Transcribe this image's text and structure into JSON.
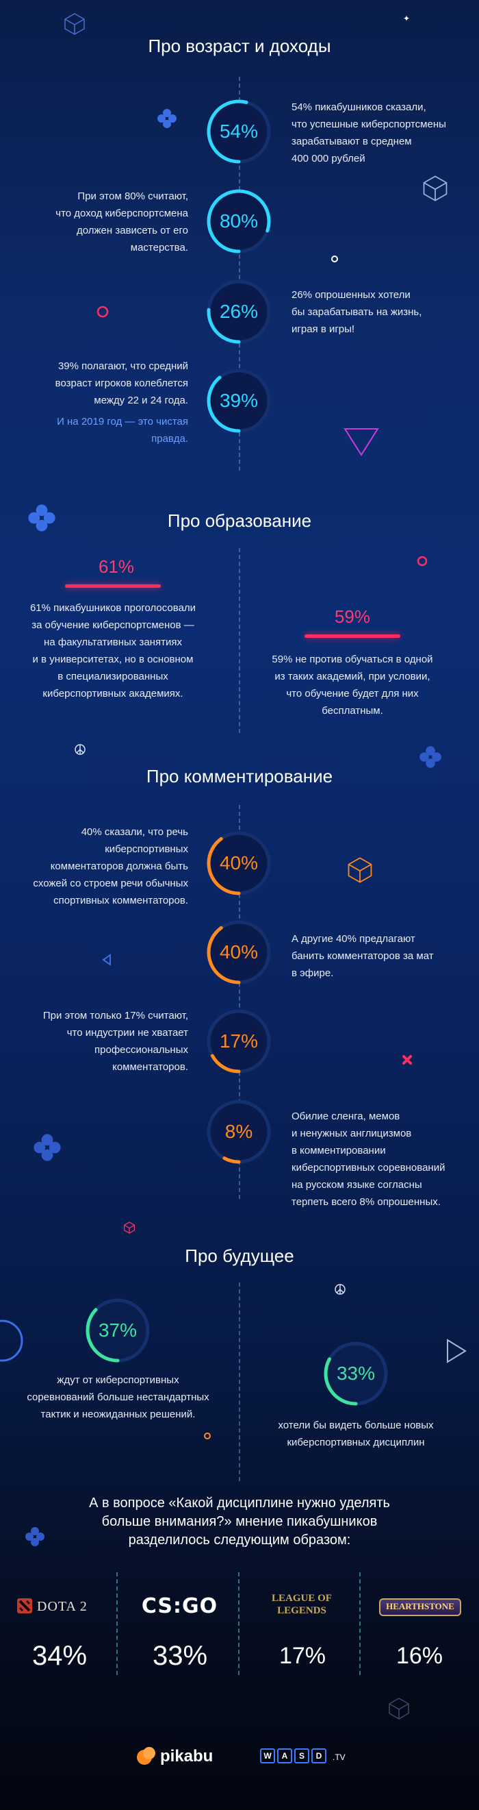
{
  "sections": {
    "age": {
      "title": "Про возраст и доходы",
      "items": [
        {
          "value": "54%",
          "text_lines": [
            "54% пикабушников сказали,",
            "что успешные киберспортсмены",
            "зарабатывают в среднем",
            "400 000 рублей"
          ]
        },
        {
          "value": "80%",
          "text_lines": [
            "При этом 80% считают,",
            "что доход киберспортсмена",
            "должен зависеть от его",
            "мастерства."
          ]
        },
        {
          "value": "26%",
          "text_lines": [
            "26% опрошенных хотели",
            "бы зарабатывать на жизнь,",
            "играя в игры!"
          ]
        },
        {
          "value": "39%",
          "text_lines": [
            "39% полагают, что средний",
            "возраст игроков колеблется",
            "между 22 и 24 года."
          ],
          "accent_lines": [
            "И на 2019 год — это чистая",
            "правда."
          ]
        }
      ]
    },
    "education": {
      "title": "Про образование",
      "items": [
        {
          "value": "61%",
          "fraction": 0.61,
          "text_lines": [
            "61% пикабушников проголосовали",
            "за обучение киберспортсменов —",
            "на факультативных занятиях",
            "и в университетах, но в основном",
            "в специализированных",
            "киберспортивных академиях."
          ]
        },
        {
          "value": "59%",
          "fraction": 0.59,
          "text_lines": [
            "59% не против обучаться в одной",
            "из таких академий, при условии,",
            "что обучение будет для них",
            "бесплатным."
          ]
        }
      ]
    },
    "commenting": {
      "title": "Про комментирование",
      "items": [
        {
          "value": "40%",
          "text_lines": [
            "40% сказали, что речь",
            "киберспортивных",
            "комментаторов должна быть",
            "схожей со строем речи обычных",
            "спортивных комментаторов."
          ]
        },
        {
          "value": "40%",
          "text_lines": [
            "А другие 40% предлагают",
            "банить комментаторов за мат",
            "в эфире."
          ]
        },
        {
          "value": "17%",
          "text_lines": [
            "При этом только 17% считают,",
            "что индустрии не хватает",
            "профессиональных",
            "комментаторов."
          ]
        },
        {
          "value": "8%",
          "text_lines": [
            "Обилие сленга, мемов",
            "и ненужных англицизмов",
            "в комментировании",
            "киберспортивных соревнований",
            "на русском языке согласны",
            "терпеть всего 8% опрошенных."
          ]
        }
      ]
    },
    "future": {
      "title": "Про будущее",
      "items": [
        {
          "value": "37%",
          "text_lines": [
            "ждут от киберспортивных",
            "соревнований больше нестандартных",
            "тактик и неожиданных решений."
          ]
        },
        {
          "value": "33%",
          "text_lines": [
            "хотели бы видеть больше новых",
            "киберспортивных дисциплин"
          ]
        }
      ]
    }
  },
  "question_lines": [
    "А в вопросе «Какой дисциплине нужно уделять",
    "больше внимания?» мнение пикабушников",
    "разделилось следующим образом:"
  ],
  "games": [
    {
      "name": "DOTA 2",
      "value": "34%"
    },
    {
      "name": "CS:GO",
      "value": "33%"
    },
    {
      "name": "LEAGUE OF LEGENDS",
      "value": "17%"
    },
    {
      "name": "HEARTHSTONE",
      "value": "16%"
    }
  ],
  "footer": {
    "pikabu": "pikabu",
    "wasd": "WASD",
    "wasd_tv": ".TV"
  },
  "colors": {
    "cyan": "#2fd6ff",
    "red": "#ff2e61",
    "orange": "#ff8a1f",
    "green": "#3fe3a0",
    "bg_top": "#0a1d4a",
    "bg_bottom": "#040610"
  },
  "icons": [
    "cube-icon",
    "star-icon",
    "plus-icon",
    "circle-icon",
    "triangle-icon",
    "peace-icon",
    "cross-icon",
    "play-icon",
    "dota2-logo",
    "csgo-logo",
    "lol-logo",
    "hearthstone-logo",
    "pikabu-logo",
    "wasd-logo"
  ]
}
